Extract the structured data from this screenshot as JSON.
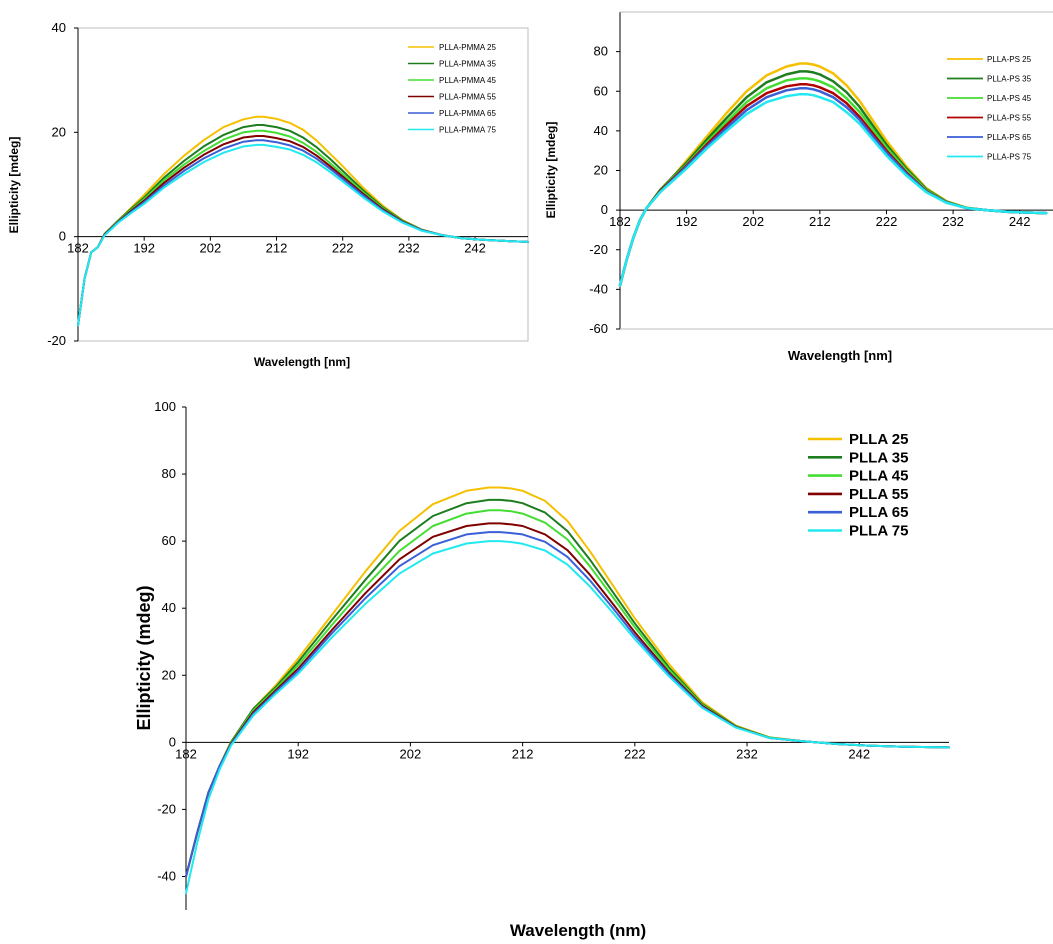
{
  "chart_data": [
    {
      "type": "line",
      "panel": "top-left",
      "xlabel": "Wavelength [nm]",
      "ylabel": "Ellipticity [mdeg]",
      "xlim": [
        182,
        250
      ],
      "ylim": [
        -20,
        40
      ],
      "x_ticks": [
        182,
        192,
        202,
        212,
        222,
        232,
        242
      ],
      "y_ticks": [
        -20,
        0,
        20,
        40
      ],
      "grid": false,
      "legend_position": "top-right",
      "x": [
        182,
        183,
        184,
        185,
        186,
        188,
        190,
        192,
        195,
        198,
        201,
        204,
        207,
        209,
        210,
        211,
        212,
        214,
        216,
        218,
        220,
        222,
        225,
        228,
        231,
        234,
        237,
        240,
        243,
        246,
        250
      ],
      "series": [
        {
          "name": "PLLA-PMMA 25",
          "color": "#f5c000",
          "values": [
            -17,
            -8,
            -3,
            -2,
            0.5,
            3,
            5.5,
            8,
            12,
            15.5,
            18.5,
            21,
            22.5,
            23,
            23,
            22.8,
            22.6,
            21.8,
            20.5,
            18.5,
            16,
            13.5,
            9.5,
            6,
            3.2,
            1.3,
            0.3,
            -0.3,
            -0.6,
            -0.8,
            -1
          ]
        },
        {
          "name": "PLLA-PMMA 35",
          "color": "#1e7d1e",
          "values": [
            -17,
            -8,
            -3,
            -2,
            0.5,
            3,
            5.3,
            7.5,
            11.3,
            14.5,
            17.3,
            19.5,
            21,
            21.4,
            21.4,
            21.2,
            21,
            20.3,
            19,
            17.2,
            15,
            12.6,
            9,
            5.7,
            3.1,
            1.3,
            0.3,
            -0.3,
            -0.6,
            -0.8,
            -1
          ]
        },
        {
          "name": "PLLA-PMMA 45",
          "color": "#44dd33",
          "values": [
            -17,
            -8,
            -3,
            -2,
            0.4,
            2.9,
            5.1,
            7.2,
            10.8,
            13.8,
            16.4,
            18.6,
            20,
            20.3,
            20.3,
            20.1,
            19.9,
            19.2,
            18,
            16.3,
            14.2,
            12,
            8.6,
            5.5,
            3,
            1.2,
            0.3,
            -0.3,
            -0.6,
            -0.8,
            -1
          ]
        },
        {
          "name": "PLLA-PMMA 55",
          "color": "#800000",
          "values": [
            -17,
            -8,
            -3,
            -2,
            0.4,
            2.8,
            4.9,
            6.9,
            10.3,
            13.2,
            15.7,
            17.7,
            19,
            19.3,
            19.3,
            19.1,
            18.9,
            18.3,
            17.2,
            15.6,
            13.6,
            11.5,
            8.3,
            5.3,
            2.9,
            1.2,
            0.3,
            -0.3,
            -0.6,
            -0.8,
            -1
          ]
        },
        {
          "name": "PLLA-PMMA 65",
          "color": "#3a5fd6",
          "values": [
            -17,
            -8,
            -3,
            -2,
            0.3,
            2.7,
            4.7,
            6.6,
            9.8,
            12.6,
            15,
            16.9,
            18.2,
            18.5,
            18.5,
            18.3,
            18.1,
            17.5,
            16.5,
            15,
            13.1,
            11.1,
            8,
            5.1,
            2.8,
            1.2,
            0.3,
            -0.3,
            -0.6,
            -0.8,
            -1
          ]
        },
        {
          "name": "PLLA-PMMA 75",
          "color": "#22e8f0",
          "values": [
            -17,
            -8,
            -3,
            -2,
            0.2,
            2.6,
            4.5,
            6.3,
            9.4,
            12,
            14.3,
            16.1,
            17.3,
            17.6,
            17.6,
            17.4,
            17.2,
            16.7,
            15.7,
            14.3,
            12.5,
            10.6,
            7.6,
            4.9,
            2.7,
            1.1,
            0.3,
            -0.3,
            -0.6,
            -0.8,
            -1
          ]
        }
      ]
    },
    {
      "type": "line",
      "panel": "top-right",
      "xlabel": "Wavelength [nm]",
      "ylabel": "Ellipticity [mdeg]",
      "xlim": [
        182,
        247
      ],
      "ylim": [
        -60,
        100
      ],
      "x_ticks": [
        182,
        192,
        202,
        212,
        222,
        232,
        242
      ],
      "y_ticks": [
        -60,
        -40,
        -20,
        0,
        20,
        40,
        60,
        80
      ],
      "grid": false,
      "legend_position": "top-right",
      "x": [
        182,
        183,
        184,
        185,
        186,
        188,
        190,
        192,
        195,
        198,
        201,
        204,
        207,
        209,
        210,
        211,
        212,
        214,
        216,
        218,
        220,
        222,
        225,
        228,
        231,
        234,
        237,
        240,
        243,
        246
      ],
      "series": [
        {
          "name": "PLLA-PS 25",
          "color": "#f5c000",
          "values": [
            -38,
            -25,
            -14,
            -5,
            1,
            10,
            17,
            25,
            37,
            49,
            60,
            68,
            72.5,
            74,
            74,
            73.5,
            72.5,
            69,
            63,
            55,
            45,
            35,
            22,
            11,
            4.5,
            1.2,
            0,
            -0.8,
            -1.2,
            -1.5
          ]
        },
        {
          "name": "PLLA-PS 35",
          "color": "#1e7d1e",
          "values": [
            -38,
            -25,
            -14,
            -5,
            1,
            10,
            17,
            24,
            35.5,
            46.5,
            57,
            64.5,
            68.5,
            70,
            70,
            69.5,
            68.5,
            65,
            59.5,
            52,
            42.5,
            33,
            21,
            10.5,
            4.3,
            1.1,
            0,
            -0.8,
            -1.2,
            -1.5
          ]
        },
        {
          "name": "PLLA-PS 45",
          "color": "#44dd33",
          "values": [
            -38,
            -25,
            -14,
            -5,
            1,
            9.5,
            16.5,
            23,
            34,
            44.5,
            54.5,
            61.5,
            65.5,
            66.5,
            66.5,
            66,
            65,
            62,
            56.5,
            49.5,
            40.5,
            31.5,
            20,
            10,
            4.1,
            1.1,
            0,
            -0.8,
            -1.2,
            -1.5
          ]
        },
        {
          "name": "PLLA-PS 55",
          "color": "#b00000",
          "values": [
            -38,
            -25,
            -14,
            -5,
            1,
            9.5,
            16,
            22.5,
            33,
            43,
            52.5,
            59,
            62.5,
            63.5,
            63.5,
            63,
            62,
            59,
            54,
            47,
            38.5,
            30,
            19,
            9.5,
            3.9,
            1,
            0,
            -0.8,
            -1.2,
            -1.5
          ]
        },
        {
          "name": "PLLA-PS 65",
          "color": "#3a5fd6",
          "values": [
            -38,
            -25,
            -14,
            -5,
            1,
            9,
            15.5,
            22,
            32,
            41.5,
            50.5,
            57,
            60.5,
            61.5,
            61.5,
            61,
            60,
            57,
            52,
            45.5,
            37,
            29,
            18.5,
            9.3,
            3.8,
            1,
            0,
            -0.8,
            -1.2,
            -1.5
          ]
        },
        {
          "name": "PLLA-PS 75",
          "color": "#22e8f0",
          "values": [
            -38,
            -25,
            -14,
            -5,
            1,
            9,
            15,
            21,
            31,
            40,
            48.5,
            54.5,
            57.5,
            58.5,
            58.5,
            58,
            57,
            54.5,
            49.5,
            43.5,
            35.5,
            27.5,
            17.5,
            9,
            3.7,
            1,
            0,
            -0.8,
            -1.2,
            -1.5
          ]
        }
      ]
    },
    {
      "type": "line",
      "panel": "bottom",
      "xlabel": "Wavelength (nm)",
      "ylabel": "Ellipticity (mdeg)",
      "xlim": [
        182,
        250
      ],
      "ylim": [
        -50,
        100
      ],
      "x_ticks": [
        182,
        192,
        202,
        212,
        222,
        232,
        242
      ],
      "y_ticks": [
        -40,
        -20,
        0,
        20,
        40,
        60,
        80,
        100
      ],
      "y_tick_labels": [
        "-40",
        "-20",
        "0",
        "20",
        "40",
        "60",
        "80",
        "100"
      ],
      "grid": false,
      "legend_position": "top-right",
      "x": [
        182,
        183,
        184,
        185,
        186,
        188,
        190,
        192,
        195,
        198,
        201,
        204,
        207,
        209,
        210,
        211,
        212,
        214,
        216,
        218,
        220,
        222,
        225,
        228,
        231,
        234,
        237,
        240,
        243,
        246,
        250
      ],
      "series": [
        {
          "name": "PLLA 25",
          "color": "#f5c000",
          "values": [
            -40,
            -27,
            -15,
            -7,
            0,
            10,
            17,
            25,
            38,
            51,
            63,
            71,
            75,
            76,
            76,
            75.7,
            75,
            72,
            66,
            57,
            47,
            37,
            23.5,
            12,
            5,
            1.5,
            0.3,
            -0.5,
            -1,
            -1.3,
            -1.5
          ]
        },
        {
          "name": "PLLA 35",
          "color": "#1e7d1e",
          "values": [
            -40,
            -27,
            -15,
            -7,
            0,
            10,
            16.5,
            24,
            36.5,
            48.5,
            60,
            67.5,
            71.3,
            72.3,
            72.3,
            72,
            71.3,
            68.5,
            63,
            54.5,
            45,
            35.5,
            22.5,
            11.5,
            4.8,
            1.4,
            0.3,
            -0.5,
            -1,
            -1.3,
            -1.5
          ]
        },
        {
          "name": "PLLA 45",
          "color": "#44dd33",
          "values": [
            -40,
            -27,
            -15,
            -7,
            -0.3,
            9.5,
            16,
            23,
            35,
            46.5,
            57,
            64.5,
            68.2,
            69.2,
            69.2,
            68.9,
            68.2,
            65.5,
            60.5,
            52.5,
            43.5,
            34.3,
            21.8,
            11.2,
            4.7,
            1.4,
            0.3,
            -0.5,
            -1,
            -1.3,
            -1.5
          ]
        },
        {
          "name": "PLLA 55",
          "color": "#800000",
          "values": [
            -40,
            -27,
            -15,
            -7,
            -0.5,
            9,
            15.5,
            22,
            33.5,
            44.5,
            54.5,
            61.3,
            64.5,
            65.3,
            65.3,
            65,
            64.5,
            62,
            57.3,
            50,
            41.5,
            32.8,
            21,
            10.9,
            4.6,
            1.3,
            0.3,
            -0.5,
            -1,
            -1.3,
            -1.5
          ]
        },
        {
          "name": "PLLA 65",
          "color": "#3a5fd6",
          "values": [
            -40,
            -27,
            -15,
            -7,
            -0.7,
            8.5,
            15,
            21.3,
            32.5,
            43,
            52.5,
            58.8,
            62,
            62.7,
            62.7,
            62.4,
            62,
            59.8,
            55.3,
            48.3,
            40.2,
            31.8,
            20.5,
            10.6,
            4.5,
            1.3,
            0.3,
            -0.5,
            -1,
            -1.3,
            -1.5
          ]
        },
        {
          "name": "PLLA 75",
          "color": "#22e8f0",
          "values": [
            -45,
            -30,
            -17,
            -8,
            -1,
            8,
            14.5,
            20.5,
            31.3,
            41.3,
            50.3,
            56.3,
            59.3,
            60,
            60,
            59.7,
            59.2,
            57.2,
            53,
            46.5,
            38.8,
            30.8,
            19.8,
            10.3,
            4.4,
            1.3,
            0.3,
            -0.5,
            -1,
            -1.3,
            -1.5
          ]
        }
      ]
    }
  ]
}
